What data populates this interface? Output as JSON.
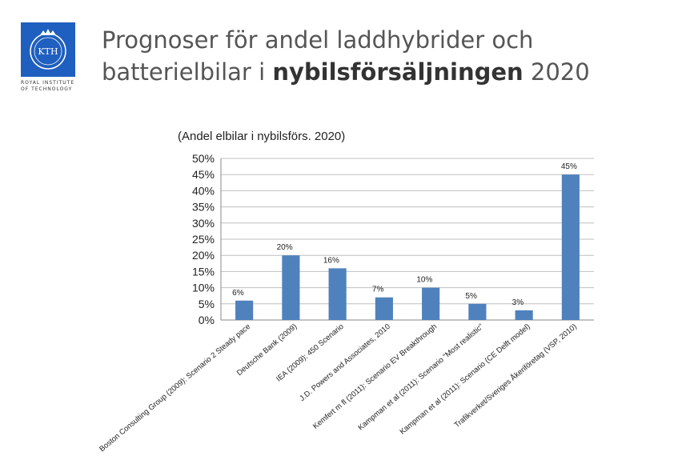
{
  "logo": {
    "mark": "KTH",
    "line1": "ROYAL INSTITUTE",
    "line2": "OF TECHNOLOGY"
  },
  "slide_title": {
    "part1": "Prognoser för andel laddhybrider och batterielbilar i ",
    "bold": "nybilsförsäljningen",
    "part2": " 2020"
  },
  "colors": {
    "bar": "#4f81bd",
    "grid": "#bfbfbf"
  },
  "chart_data": {
    "type": "bar",
    "title": "(Andel elbilar i nybilsförs. 2020)",
    "ylim": [
      0,
      50
    ],
    "ytick_step": 5,
    "ytick_labels": [
      "0%",
      "5%",
      "10%",
      "15%",
      "20%",
      "25%",
      "30%",
      "35%",
      "40%",
      "45%",
      "50%"
    ],
    "categories": [
      "Boston Consulting Group (2009): Scenario 2 Steady pace",
      "Deutsche Bank (2009)",
      "IEA (2009): 450 Scenario",
      "J.D. Powers and Associates, 2010",
      "Kemfert m fl (2011): Scenario EV Breakthrough",
      "Kampman et al (2011): Scenario \"Most realistic\"",
      "Kampman et al (2011): Scenario (CE Delft model)",
      "Trafikverket/Sveriges Åkeriföretag (VSP, 2010)"
    ],
    "values": [
      6,
      20,
      16,
      7,
      10,
      5,
      3,
      45
    ],
    "data_labels": [
      "6%",
      "20%",
      "16%",
      "7%",
      "10%",
      "5%",
      "3%",
      "45%"
    ]
  }
}
